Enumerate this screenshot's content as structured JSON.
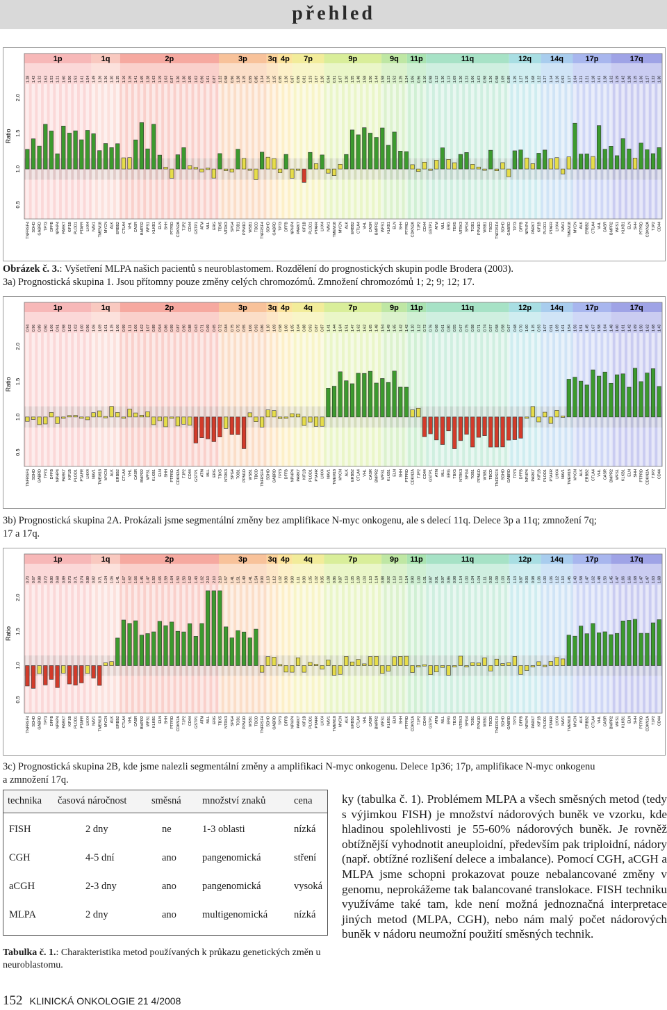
{
  "header": {
    "title": "přehled"
  },
  "figure": {
    "chrom_labels_a": [
      "1p",
      "1q",
      "2p",
      "3p",
      "3q",
      "4p",
      "7p",
      "9p",
      "9q",
      "11p",
      "11q",
      "12q",
      "14q",
      "17p",
      "17q"
    ],
    "chrom_labels_b": [
      "1p",
      "1q",
      "2p",
      "3p",
      "3q",
      "4p",
      "4q",
      "7p",
      "9p",
      "11p",
      "11q",
      "12p",
      "14q",
      "17p",
      "17q"
    ],
    "chrom_labels_c": [
      "1p",
      "1q",
      "2p",
      "3p",
      "3q",
      "4p",
      "4q",
      "7p",
      "9p",
      "11p",
      "11q",
      "12p",
      "14q",
      "17p",
      "17q"
    ],
    "ylabel": "Ratio",
    "yticks": [
      "2.0",
      "1.5",
      "1.0",
      "0.5"
    ]
  },
  "captions": {
    "c1_bold": "Obrázek č. 3.",
    "c1_text": ": Vyšetření MLPA našich pacientů s neuroblastomem. Rozdělení do prognostických skupin podle Brodera (2003).",
    "c1_line2": "3a) Prognostická skupina 1. Jsou přítomny pouze změny celých chromozómů. Zmnožení chromozómů 1; 2; 9; 12; 17.",
    "c2_line1": "3b) Prognostická skupina 2A. Prokázali jsme segmentální změny bez amplifikace N-myc onkogenu, ale s delecí 11q. Delece 3p a 11q; zmnožení 7q;",
    "c2_line2": "17 a 17q.",
    "c3_line1": "3c) Prognostická skupina 2B, kde jsme nalezli segmentální změny a amplifikaci N-myc onkogenu. Delece 1p36; 17p, amplifikace N-myc onkogenu",
    "c3_line2": "a zmnožení 17q."
  },
  "table": {
    "headers": [
      "technika",
      "časová náročnost",
      "směsná",
      "množství znaků",
      "cena"
    ],
    "rows": [
      [
        "FISH",
        "2 dny",
        "ne",
        "1-3 oblasti",
        "nízká"
      ],
      [
        "CGH",
        "4-5 dní",
        "ano",
        "pangenomická",
        "stření"
      ],
      [
        "aCGH",
        "2-3 dny",
        "ano",
        "pangenomická",
        "vysoká"
      ],
      [
        "MLPA",
        "2 dny",
        "ano",
        "multigenomická",
        "nízká"
      ]
    ],
    "caption_bold": "Tabulka č. 1.",
    "caption_text": ": Charakteristika metod používaných k průkazu genetických změn u neuroblastomu."
  },
  "body": {
    "paragraph": "ky (tabulka č. 1). Problémem MLPA a všech směsných metod (tedy s výjimkou FISH) je množství nádorových buněk ve vzorku, kde hladinou spolehlivosti je 55-60% nádorových buněk. Je rovněž obtížnější vyhodnotit aneuploidní, především pak triploidní, nádory (např. obtížné rozlišení delece a imbalance). Pomocí CGH, aCGH a MLPA jsme schopni prokazovat pouze nebalancované změny v genomu, neprokážeme tak balancované translokace. FISH techniku využíváme také tam, kde není možná jednoznačná interpretace jiných metod (MLPA, CGH), nebo nám malý počet nádorových buněk v nádoru neumožní použití směsných technik."
  },
  "footer": {
    "page": "152",
    "journal": "KLINICKÁ ONKOLOGIE  21  4/2008"
  },
  "colors": {
    "gain": "#3c9a2e",
    "loss": "#d23b2a",
    "normal": "#e3d94a",
    "band": "#c8c8c8"
  }
}
